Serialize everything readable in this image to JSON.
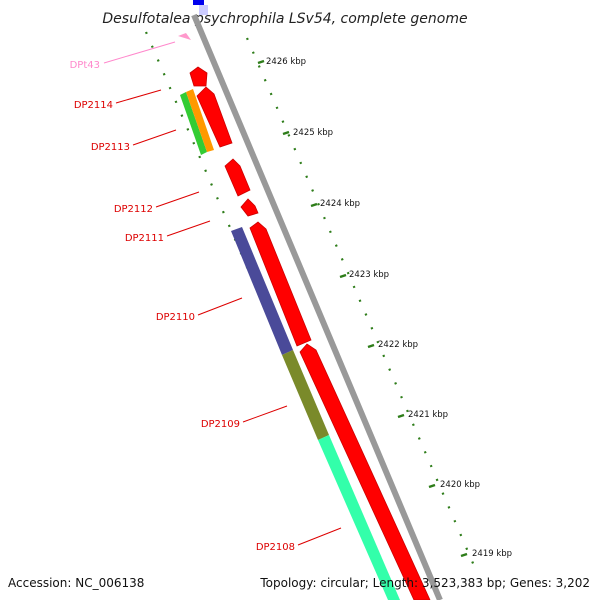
{
  "title": "Desulfotalea psychrophila LSv54, complete genome",
  "accession": "Accession: NC_006138",
  "summary": "Topology: circular; Length: 3,523,383 bp; Genes: 3,202",
  "kbp_ticks": [
    {
      "label": "2426 kbp",
      "pos": 2426
    },
    {
      "label": "2425 kbp",
      "pos": 2425
    },
    {
      "label": "2424 kbp",
      "pos": 2424
    },
    {
      "label": "2423 kbp",
      "pos": 2423
    },
    {
      "label": "2422 kbp",
      "pos": 2422
    },
    {
      "label": "2421 kbp",
      "pos": 2421
    },
    {
      "label": "2420 kbp",
      "pos": 2420
    },
    {
      "label": "2419 kbp",
      "pos": 2419
    }
  ],
  "gene_labels": [
    {
      "name": "DPt43",
      "color": "#ff88cc"
    },
    {
      "name": "DP2114",
      "color": "#dd0000"
    },
    {
      "name": "DP2113",
      "color": "#dd0000"
    },
    {
      "name": "DP2112",
      "color": "#dd0000"
    },
    {
      "name": "DP2111",
      "color": "#dd0000"
    },
    {
      "name": "DP2110",
      "color": "#dd0000"
    },
    {
      "name": "DP2109",
      "color": "#dd0000"
    },
    {
      "name": "DP2108",
      "color": "#dd0000"
    }
  ],
  "colors": {
    "cds_strand": "#ff0000",
    "backbone": "#999999",
    "tick_green": "#2e7d1a",
    "trna": "#ff99cc",
    "blue_feature": "#0000ee",
    "cog_green": "#33cc33",
    "cog_orange": "#ff9900",
    "cog_purple": "#4a4a99",
    "cog_olive": "#7a8a2a",
    "cog_aqua": "#33ffaa"
  }
}
